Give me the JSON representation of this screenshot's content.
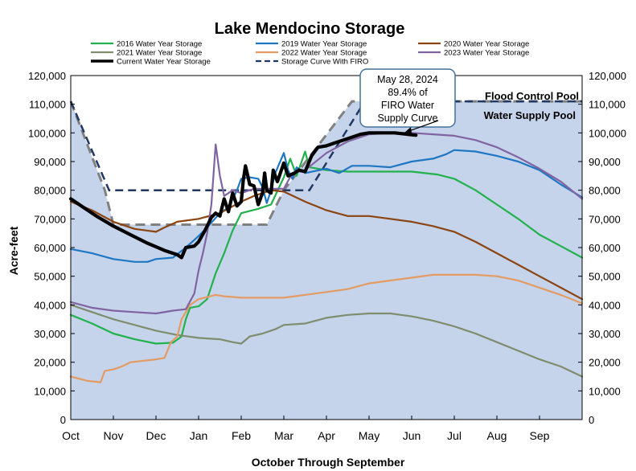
{
  "chart_data": {
    "type": "line",
    "title": "Lake Mendocino Storage",
    "xlabel": "October Through September",
    "ylabel": "Acre-feet",
    "months": [
      "Oct",
      "Nov",
      "Dec",
      "Jan",
      "Feb",
      "Mar",
      "Apr",
      "May",
      "Jun",
      "Jul",
      "Aug",
      "Sep"
    ],
    "xlim": [
      0,
      12
    ],
    "ylim": [
      0,
      120000
    ],
    "yticks": [
      "0",
      "10,000",
      "20,000",
      "30,000",
      "40,000",
      "50,000",
      "60,000",
      "70,000",
      "80,000",
      "90,000",
      "100,000",
      "110,000",
      "120,000"
    ],
    "grid": false,
    "legend_position": "top",
    "legend": [
      {
        "label": "2016 Water Year Storage",
        "color": "#22b14c",
        "style": "solid"
      },
      {
        "label": "2019 Water Year Storage",
        "color": "#1f77c4",
        "style": "solid"
      },
      {
        "label": "2020 Water Year Storage",
        "color": "#8b4513",
        "style": "solid"
      },
      {
        "label": "2021 Water Year Storage",
        "color": "#7f8c6d",
        "style": "solid"
      },
      {
        "label": "2022 Water Year Storage",
        "color": "#e39b63",
        "style": "solid"
      },
      {
        "label": "2023 Water Year Storage",
        "color": "#8064a2",
        "style": "solid"
      },
      {
        "label": "Current Water Year Storage",
        "color": "#000000",
        "style": "bold"
      },
      {
        "label": "Storage Curve With FIRO",
        "color": "#1f3864",
        "style": "dashed"
      }
    ],
    "pool_labels": {
      "flood": "Flood Control Pool",
      "supply": "Water Supply Pool"
    },
    "callout": {
      "line1": "May 28, 2024",
      "line2": "89.4% of",
      "line3": "FIRO Water",
      "line4": "Supply Curve"
    },
    "rule_curve": [
      [
        0,
        111000
      ],
      [
        0.8,
        80000
      ],
      [
        1.0,
        68000
      ],
      [
        4.6,
        68000
      ],
      [
        5.0,
        80000
      ],
      [
        6.6,
        111000
      ],
      [
        12,
        111000
      ]
    ],
    "firo_curve": [
      [
        0,
        111000
      ],
      [
        0.9,
        80000
      ],
      [
        5.6,
        80000
      ],
      [
        6.9,
        111000
      ],
      [
        12,
        111000
      ]
    ],
    "rule_curve_gray": [
      [
        0,
        111000
      ],
      [
        0.8,
        80000
      ],
      [
        1.0,
        68000
      ],
      [
        4.6,
        68000
      ],
      [
        5.0,
        80000
      ],
      [
        6.6,
        111000
      ],
      [
        12,
        111000
      ]
    ],
    "series": [
      {
        "name": "2016 Water Year Storage",
        "color": "#22b14c",
        "width": 2.2,
        "points": [
          [
            0,
            36500
          ],
          [
            0.5,
            33500
          ],
          [
            1,
            30000
          ],
          [
            1.5,
            28000
          ],
          [
            2,
            26500
          ],
          [
            2.4,
            26800
          ],
          [
            2.6,
            29000
          ],
          [
            2.7,
            35000
          ],
          [
            2.8,
            39000
          ],
          [
            3,
            39500
          ],
          [
            3.2,
            42000
          ],
          [
            3.4,
            51000
          ],
          [
            3.6,
            58000
          ],
          [
            3.8,
            66000
          ],
          [
            4,
            72000
          ],
          [
            4.4,
            73500
          ],
          [
            4.7,
            75000
          ],
          [
            5,
            84500
          ],
          [
            5.15,
            91000
          ],
          [
            5.3,
            85000
          ],
          [
            5.5,
            93500
          ],
          [
            5.6,
            88000
          ],
          [
            6,
            87000
          ],
          [
            6.5,
            86500
          ],
          [
            7,
            86500
          ],
          [
            8,
            86500
          ],
          [
            8.6,
            85500
          ],
          [
            9,
            84000
          ],
          [
            9.5,
            80000
          ],
          [
            10,
            75000
          ],
          [
            10.5,
            70000
          ],
          [
            11,
            64500
          ],
          [
            11.5,
            60500
          ],
          [
            12,
            56500
          ]
        ]
      },
      {
        "name": "2019 Water Year Storage",
        "color": "#1f77c4",
        "width": 2.2,
        "points": [
          [
            0,
            59500
          ],
          [
            0.5,
            58000
          ],
          [
            1,
            56000
          ],
          [
            1.5,
            55000
          ],
          [
            1.8,
            55000
          ],
          [
            2,
            56000
          ],
          [
            2.4,
            56500
          ],
          [
            2.7,
            60000
          ],
          [
            3,
            64000
          ],
          [
            3.2,
            67000
          ],
          [
            3.5,
            72000
          ],
          [
            3.7,
            74000
          ],
          [
            3.9,
            80000
          ],
          [
            4,
            84000
          ],
          [
            4.2,
            84500
          ],
          [
            4.4,
            84000
          ],
          [
            4.5,
            81000
          ],
          [
            4.6,
            75500
          ],
          [
            4.7,
            80000
          ],
          [
            4.8,
            86000
          ],
          [
            5,
            93000
          ],
          [
            5.1,
            87000
          ],
          [
            5.2,
            84000
          ],
          [
            5.3,
            88000
          ],
          [
            5.5,
            86000
          ],
          [
            6,
            87500
          ],
          [
            6.3,
            86000
          ],
          [
            6.6,
            88500
          ],
          [
            7,
            88500
          ],
          [
            7.5,
            88000
          ],
          [
            8,
            90000
          ],
          [
            8.5,
            91000
          ],
          [
            8.8,
            92500
          ],
          [
            9,
            94000
          ],
          [
            9.5,
            93500
          ],
          [
            10,
            92000
          ],
          [
            10.5,
            90000
          ],
          [
            11,
            87000
          ],
          [
            11.5,
            82000
          ],
          [
            12,
            77500
          ]
        ]
      },
      {
        "name": "2020 Water Year Storage",
        "color": "#8b4513",
        "width": 2.2,
        "points": [
          [
            0,
            76000
          ],
          [
            0.5,
            73000
          ],
          [
            1,
            69000
          ],
          [
            1.5,
            66500
          ],
          [
            2,
            65500
          ],
          [
            2.2,
            67000
          ],
          [
            2.5,
            69000
          ],
          [
            3,
            70000
          ],
          [
            3.5,
            72000
          ],
          [
            4,
            76000
          ],
          [
            4.3,
            78000
          ],
          [
            4.7,
            80000
          ],
          [
            5,
            79500
          ],
          [
            5.5,
            76000
          ],
          [
            6,
            73000
          ],
          [
            6.5,
            71000
          ],
          [
            7,
            71000
          ],
          [
            7.5,
            70000
          ],
          [
            8,
            69000
          ],
          [
            8.5,
            67500
          ],
          [
            9,
            65500
          ],
          [
            9.5,
            62000
          ],
          [
            10,
            58000
          ],
          [
            10.5,
            54000
          ],
          [
            11,
            50000
          ],
          [
            11.5,
            46000
          ],
          [
            12,
            42000
          ]
        ]
      },
      {
        "name": "2021 Water Year Storage",
        "color": "#7f8c6d",
        "width": 2.2,
        "points": [
          [
            0,
            40000
          ],
          [
            0.5,
            37500
          ],
          [
            1,
            35000
          ],
          [
            1.5,
            33000
          ],
          [
            2,
            31000
          ],
          [
            2.5,
            29500
          ],
          [
            3,
            28500
          ],
          [
            3.5,
            28000
          ],
          [
            3.8,
            27000
          ],
          [
            4,
            26500
          ],
          [
            4.2,
            29000
          ],
          [
            4.5,
            30000
          ],
          [
            4.8,
            31500
          ],
          [
            5,
            33000
          ],
          [
            5.5,
            33500
          ],
          [
            6,
            35500
          ],
          [
            6.5,
            36500
          ],
          [
            7,
            37000
          ],
          [
            7.5,
            37000
          ],
          [
            8,
            36000
          ],
          [
            8.5,
            34500
          ],
          [
            9,
            32500
          ],
          [
            9.5,
            30000
          ],
          [
            10,
            27000
          ],
          [
            10.5,
            24000
          ],
          [
            11,
            21000
          ],
          [
            11.5,
            18500
          ],
          [
            12,
            15000
          ]
        ]
      },
      {
        "name": "2022 Water Year Storage",
        "color": "#e39b63",
        "width": 2.2,
        "points": [
          [
            0,
            15000
          ],
          [
            0.4,
            13500
          ],
          [
            0.7,
            13000
          ],
          [
            0.8,
            17000
          ],
          [
            1,
            17500
          ],
          [
            1.2,
            18500
          ],
          [
            1.4,
            20000
          ],
          [
            2,
            21000
          ],
          [
            2.2,
            21500
          ],
          [
            2.35,
            27000
          ],
          [
            2.5,
            29000
          ],
          [
            2.6,
            35000
          ],
          [
            2.8,
            40000
          ],
          [
            3,
            42000
          ],
          [
            3.4,
            43500
          ],
          [
            3.6,
            43000
          ],
          [
            4,
            42500
          ],
          [
            4.5,
            42500
          ],
          [
            5,
            42500
          ],
          [
            5.5,
            43500
          ],
          [
            6,
            44500
          ],
          [
            6.5,
            45500
          ],
          [
            7,
            47500
          ],
          [
            7.5,
            48500
          ],
          [
            8,
            49500
          ],
          [
            8.5,
            50500
          ],
          [
            9,
            50500
          ],
          [
            9.5,
            50500
          ],
          [
            10,
            50000
          ],
          [
            10.5,
            48500
          ],
          [
            11,
            46000
          ],
          [
            11.5,
            43500
          ],
          [
            12,
            40500
          ]
        ]
      },
      {
        "name": "2023 Water Year Storage",
        "color": "#8064a2",
        "width": 2.2,
        "points": [
          [
            0,
            41000
          ],
          [
            0.5,
            39000
          ],
          [
            1,
            38000
          ],
          [
            1.5,
            37500
          ],
          [
            2,
            37000
          ],
          [
            2.4,
            38000
          ],
          [
            2.7,
            38500
          ],
          [
            2.9,
            44000
          ],
          [
            3,
            52000
          ],
          [
            3.1,
            58000
          ],
          [
            3.2,
            65000
          ],
          [
            3.3,
            75000
          ],
          [
            3.4,
            96000
          ],
          [
            3.5,
            85000
          ],
          [
            3.6,
            78000
          ],
          [
            3.8,
            80000
          ],
          [
            4,
            79000
          ],
          [
            4.3,
            80500
          ],
          [
            4.6,
            80500
          ],
          [
            5,
            80500
          ],
          [
            5.2,
            86000
          ],
          [
            5.5,
            87000
          ],
          [
            6,
            93000
          ],
          [
            6.5,
            97000
          ],
          [
            7,
            99500
          ],
          [
            7.5,
            100000
          ],
          [
            8,
            100000
          ],
          [
            8.5,
            99500
          ],
          [
            9,
            99000
          ],
          [
            9.5,
            97500
          ],
          [
            10,
            95000
          ],
          [
            10.5,
            91500
          ],
          [
            11,
            87500
          ],
          [
            11.5,
            83000
          ],
          [
            12,
            77000
          ]
        ]
      },
      {
        "name": "Current Water Year Storage",
        "color": "#000000",
        "width": 4.2,
        "points": [
          [
            0,
            77000
          ],
          [
            0.3,
            74000
          ],
          [
            0.6,
            71000
          ],
          [
            1,
            67500
          ],
          [
            1.4,
            64500
          ],
          [
            1.8,
            61500
          ],
          [
            2.2,
            59000
          ],
          [
            2.5,
            57500
          ],
          [
            2.6,
            56500
          ],
          [
            2.7,
            60000
          ],
          [
            2.9,
            60500
          ],
          [
            3.0,
            62000
          ],
          [
            3.15,
            66000
          ],
          [
            3.3,
            70500
          ],
          [
            3.4,
            72000
          ],
          [
            3.5,
            71000
          ],
          [
            3.6,
            77000
          ],
          [
            3.7,
            72500
          ],
          [
            3.8,
            79000
          ],
          [
            3.9,
            74500
          ],
          [
            4.0,
            76000
          ],
          [
            4.05,
            83500
          ],
          [
            4.1,
            88500
          ],
          [
            4.2,
            82000
          ],
          [
            4.3,
            81500
          ],
          [
            4.4,
            75000
          ],
          [
            4.5,
            79000
          ],
          [
            4.55,
            86000
          ],
          [
            4.6,
            80000
          ],
          [
            4.7,
            79000
          ],
          [
            4.75,
            87000
          ],
          [
            4.85,
            83000
          ],
          [
            5.0,
            89500
          ],
          [
            5.1,
            85000
          ],
          [
            5.25,
            86000
          ],
          [
            5.35,
            87000
          ],
          [
            5.5,
            86500
          ],
          [
            5.65,
            92000
          ],
          [
            5.8,
            95000
          ],
          [
            6.0,
            95500
          ],
          [
            6.2,
            96500
          ],
          [
            6.5,
            98000
          ],
          [
            6.8,
            99500
          ],
          [
            7.0,
            100000
          ],
          [
            7.3,
            100000
          ],
          [
            7.6,
            100000
          ],
          [
            7.9,
            99500
          ],
          [
            8.1,
            99200
          ]
        ]
      }
    ]
  }
}
